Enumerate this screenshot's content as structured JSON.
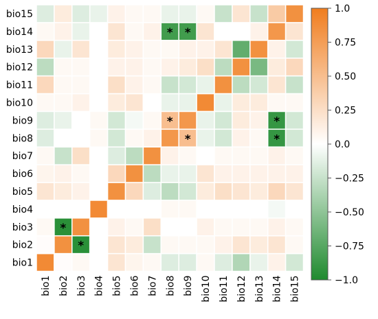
{
  "chart_data": {
    "type": "heatmap",
    "x_categories": [
      "bio1",
      "bio2",
      "bio3",
      "bio4",
      "bio5",
      "bio6",
      "bio7",
      "bio8",
      "bio9",
      "bio10",
      "bio11",
      "bio12",
      "bio13",
      "bio14",
      "bio15"
    ],
    "y_categories": [
      "bio1",
      "bio2",
      "bio3",
      "bio4",
      "bio5",
      "bio6",
      "bio7",
      "bio8",
      "bio9",
      "bio10",
      "bio11",
      "bio12",
      "bio13",
      "bio14",
      "bio15"
    ],
    "matrix": [
      [
        0.9,
        0.02,
        0.05,
        0.0,
        0.2,
        0.08,
        0.05,
        -0.15,
        -0.15,
        0.05,
        -0.15,
        -0.35,
        -0.1,
        0.1,
        -0.2
      ],
      [
        0.02,
        0.85,
        -0.95,
        0.0,
        0.2,
        0.15,
        -0.25,
        0.05,
        0.05,
        0.05,
        0.1,
        0.2,
        0.15,
        0.2,
        0.05
      ],
      [
        0.05,
        -0.95,
        0.85,
        0.0,
        0.1,
        0.05,
        0.25,
        0.0,
        0.0,
        0.1,
        0.05,
        0.05,
        0.05,
        0.1,
        0.05
      ],
      [
        0.0,
        0.0,
        0.0,
        0.9,
        0.0,
        0.0,
        0.0,
        0.05,
        0.05,
        0.0,
        0.0,
        0.0,
        0.0,
        -0.05,
        0.0
      ],
      [
        0.2,
        0.15,
        0.1,
        0.0,
        0.85,
        0.3,
        -0.15,
        -0.3,
        -0.2,
        0.15,
        0.25,
        0.2,
        0.15,
        0.3,
        0.2
      ],
      [
        0.08,
        0.1,
        0.05,
        0.0,
        0.3,
        0.85,
        -0.3,
        -0.1,
        -0.1,
        0.2,
        0.1,
        0.1,
        0.1,
        0.1,
        0.1
      ],
      [
        0.05,
        -0.25,
        0.25,
        0.0,
        -0.15,
        -0.3,
        0.85,
        0.1,
        0.05,
        0.0,
        0.05,
        0.05,
        0.05,
        0.1,
        0.05
      ],
      [
        -0.15,
        0.0,
        0.0,
        0.05,
        -0.2,
        0.05,
        0.1,
        0.8,
        0.5,
        -0.1,
        -0.2,
        0.1,
        0.05,
        -0.9,
        -0.2
      ],
      [
        -0.15,
        -0.1,
        0.0,
        0.05,
        -0.2,
        -0.05,
        0.05,
        0.5,
        0.8,
        -0.1,
        -0.2,
        0.15,
        0.1,
        -0.9,
        -0.2
      ],
      [
        0.05,
        0.05,
        0.1,
        0.0,
        0.15,
        0.2,
        0.0,
        -0.1,
        -0.1,
        0.9,
        -0.1,
        0.15,
        0.15,
        0.05,
        0.05
      ],
      [
        0.3,
        0.05,
        0.05,
        0.0,
        0.25,
        0.1,
        0.05,
        -0.25,
        -0.2,
        -0.1,
        0.85,
        -0.3,
        -0.2,
        0.2,
        -0.25
      ],
      [
        -0.3,
        0.05,
        0.05,
        0.0,
        0.1,
        0.1,
        0.05,
        0.1,
        0.15,
        0.25,
        -0.3,
        0.85,
        -0.6,
        0.15,
        0.3
      ],
      [
        0.3,
        -0.1,
        0.2,
        0.0,
        0.15,
        0.1,
        0.05,
        0.05,
        0.1,
        0.1,
        0.2,
        -0.7,
        0.85,
        0.1,
        -0.2
      ],
      [
        0.05,
        0.1,
        -0.1,
        0.0,
        0.2,
        0.05,
        0.1,
        -0.85,
        -0.85,
        0.2,
        0.0,
        0.0,
        0.1,
        0.8,
        0.2
      ],
      [
        -0.15,
        0.15,
        -0.15,
        -0.1,
        0.1,
        0.05,
        0.05,
        -0.1,
        -0.1,
        0.05,
        -0.25,
        0.2,
        -0.25,
        0.4,
        0.85
      ]
    ],
    "significant_cells": [
      {
        "row": "bio14",
        "col": "bio8"
      },
      {
        "row": "bio14",
        "col": "bio9"
      },
      {
        "row": "bio9",
        "col": "bio8"
      },
      {
        "row": "bio9",
        "col": "bio14"
      },
      {
        "row": "bio8",
        "col": "bio9"
      },
      {
        "row": "bio8",
        "col": "bio14"
      },
      {
        "row": "bio3",
        "col": "bio2"
      },
      {
        "row": "bio2",
        "col": "bio3"
      }
    ],
    "significance_marker": "*",
    "colorbar": {
      "range": [
        -1.0,
        1.0
      ],
      "ticks": [
        "1.0",
        "0.75",
        "0.50",
        "0.25",
        "0.0",
        "−0.25",
        "−0.50",
        "−0.75",
        "−1.0"
      ],
      "colors": {
        "negative": "#1f8a2e",
        "zero": "#ffffff",
        "positive": "#f07d1e"
      }
    },
    "title": "",
    "xlabel": "",
    "ylabel": ""
  }
}
